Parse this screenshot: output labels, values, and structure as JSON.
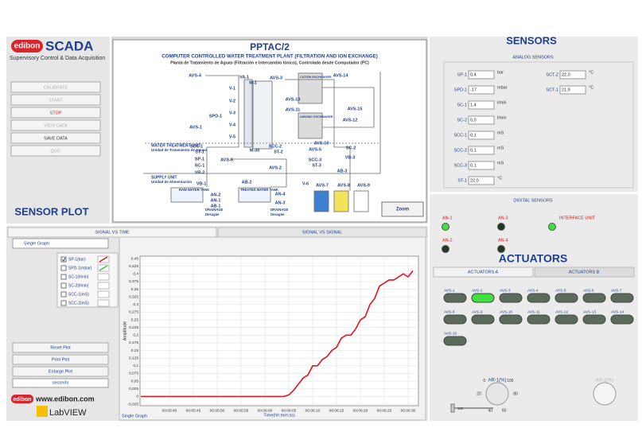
{
  "header": {
    "brand": "edibon",
    "product": "SCADA",
    "tagline": "Supervisory Control & Data Acquisition"
  },
  "controls": [
    "CALIBRATE",
    "START",
    "STOP",
    "VIEW DATA",
    "SAVE DATA",
    "QUIT"
  ],
  "sensor_plot_title": "SENSOR PLOT",
  "diagram": {
    "title": "PPTAC/2",
    "subtitle": "COMPUTER CONTROLLED WATER TREATMENT PLANT (FILTRATION AND ION EXCHANGE)",
    "subtitle_es": "Planta de Tratamiento de Aguas (Filtración e Intercambio Iónico), Controlada desde Computador (PC)",
    "labels": [
      "AVS-4",
      "VA-1",
      "AVS-3",
      "AVS-14",
      "V-1",
      "M-1",
      "V-2",
      "AVS-13",
      "AVS-11",
      "AVS-15",
      "V-3",
      "SPD-1",
      "AVS-12",
      "V-4",
      "AVS-1",
      "V-5",
      "AVS-10",
      "SCC-1",
      "SCC-2",
      "SC-2",
      "ST-1",
      "ST-2",
      "AVS-5",
      "M-30",
      "SP-1",
      "AVS-6",
      "VB-3",
      "SCC-3",
      "ST-3",
      "SC-1",
      "AVS-2",
      "AB-3",
      "VR-2",
      "AB-2",
      "VB-1",
      "V-6",
      "AVS-7",
      "AVS-8",
      "AVS-9",
      "AN-2",
      "AN-1",
      "AB-1",
      "AN-4",
      "AN-3"
    ],
    "captions": [
      "WATER TREATMENT UNIT",
      "Unidad de Tratamiento de Aguas",
      "SUPPLY UNIT",
      "Unidad de Alimentación",
      "RAW WATER TANK",
      "TREATED WATER TANK",
      "DRAINAGE",
      "Desagüe",
      "DRAINAGE",
      "Desagüe",
      "CATION EXCHANGER",
      "ANIONIC EXCHANGER"
    ],
    "zoom": "Zoom"
  },
  "sensors": {
    "title": "SENSORS",
    "analog_title": "ANALOG SENSORS",
    "analog": [
      {
        "name": "SP-1",
        "value": "0,4",
        "unit": "bar"
      },
      {
        "name": "SPD-1",
        "value": "-17",
        "unit": "mbar"
      },
      {
        "name": "SC-1",
        "value": "1,4",
        "unit": "l/min"
      },
      {
        "name": "SC-2",
        "value": "0,0",
        "unit": "l/min"
      },
      {
        "name": "SCC-1",
        "value": "0,1",
        "unit": "mS"
      },
      {
        "name": "SCC-2",
        "value": "0,1",
        "unit": "mS"
      },
      {
        "name": "SCC-3",
        "value": "0,1",
        "unit": "mS"
      },
      {
        "name": "ST-1",
        "value": "22,0",
        "unit": "°C"
      },
      {
        "name": "SCT-2",
        "value": "22,0",
        "unit": "°C"
      },
      {
        "name": "SCT-1",
        "value": "21,9",
        "unit": "°C"
      }
    ],
    "digital_title": "DIGITAL SENSORS",
    "digital": [
      {
        "name": "AN-1",
        "on": true
      },
      {
        "name": "AN-3",
        "on": false
      },
      {
        "name": "INTERFACE UNIT",
        "on": true
      },
      {
        "name": "AN-2",
        "on": false
      },
      {
        "name": "AN-4",
        "on": false
      }
    ]
  },
  "actuators": {
    "title": "ACTUATORS",
    "tabs": [
      "ACTUATORS A",
      "ACTUATORS B"
    ],
    "valves": [
      {
        "name": "AVS-1",
        "on": false
      },
      {
        "name": "AVS-2",
        "on": true
      },
      {
        "name": "AVS-3",
        "on": false
      },
      {
        "name": "AVS-4",
        "on": false
      },
      {
        "name": "AVS-5",
        "on": false
      },
      {
        "name": "AVS-6",
        "on": false
      },
      {
        "name": "AVS-7",
        "on": false
      },
      {
        "name": "AVS-8",
        "on": false
      },
      {
        "name": "AVS-9",
        "on": false
      },
      {
        "name": "AVS-10",
        "on": false
      },
      {
        "name": "AVS-11",
        "on": false
      },
      {
        "name": "AVS-12",
        "on": false
      },
      {
        "name": "AVS-13",
        "on": false
      },
      {
        "name": "AVS-14",
        "on": false
      },
      {
        "name": "AVS-15",
        "on": false
      }
    ],
    "knobs": [
      "AR-1(%)",
      "AR-2(%)"
    ],
    "knob_scale": [
      0,
      20,
      40,
      60,
      80,
      100
    ],
    "slider_label": 100
  },
  "plot": {
    "tabs": [
      "SIGNAL VS TIME",
      "SIGNAL VS SIGNAL"
    ],
    "mode": "Single Graph",
    "channels": [
      {
        "name": "SP-1(bar)",
        "checked": true,
        "color": "#e4141b"
      },
      {
        "name": "SPD-1(mbar)",
        "checked": false,
        "color": "#3cc43c"
      },
      {
        "name": "SC-1(l/min)",
        "checked": false,
        "color": "#ffffff"
      },
      {
        "name": "SC-2(l/min)",
        "checked": false,
        "color": "#ffffff"
      },
      {
        "name": "SCC-1(mS)",
        "checked": false,
        "color": "#ffffff"
      },
      {
        "name": "SCC-2(mS)",
        "checked": false,
        "color": "#ffffff"
      }
    ],
    "buttons": [
      "Reset Plot",
      "Print Plot",
      "Enlarge Plot"
    ],
    "units": "seconds",
    "chart_data": {
      "type": "line",
      "caption": "Single Graph",
      "xlabel": "Time(hh:mm:ss)",
      "ylabel": "Amplitude",
      "x": [
        334,
        364,
        365,
        366,
        367,
        368,
        369,
        370,
        371,
        372,
        373,
        374,
        375,
        376,
        377,
        378,
        379,
        380,
        381,
        382,
        383,
        384,
        385,
        386,
        387,
        388,
        389,
        390,
        391
      ],
      "series": [
        {
          "color": "#e4141b",
          "values": [
            0,
            0,
            0.005,
            0.02,
            0.04,
            0.06,
            0.07,
            0.1,
            0.1,
            0.12,
            0.13,
            0.15,
            0.16,
            0.19,
            0.2,
            0.2,
            0.22,
            0.25,
            0.26,
            0.3,
            0.32,
            0.36,
            0.37,
            0.38,
            0.38,
            0.39,
            0.4,
            0.39,
            0.41
          ]
        }
      ],
      "xlim": [
        334,
        392
      ],
      "ylim": [
        -0.025,
        0.45
      ],
      "xticks": [
        {
          "value": 340,
          "label": "00:05:40"
        },
        {
          "value": 345,
          "label": "00:05:45"
        },
        {
          "value": 350,
          "label": "00:05:50"
        },
        {
          "value": 355,
          "label": "00:05:55"
        },
        {
          "value": 360,
          "label": "00:06:00"
        },
        {
          "value": 365,
          "label": "00:06:05"
        },
        {
          "value": 370,
          "label": "00:06:10"
        },
        {
          "value": 375,
          "label": "00:06:15"
        },
        {
          "value": 380,
          "label": "00:06:20"
        },
        {
          "value": 385,
          "label": "00:06:25"
        },
        {
          "value": 390,
          "label": "00:06:30"
        }
      ],
      "yticks": [
        {
          "value": -0.025,
          "label": "-0,025"
        },
        0,
        {
          "value": 0.025,
          "label": "0,025"
        },
        {
          "value": 0.05,
          "label": "0,05"
        },
        {
          "value": 0.075,
          "label": "0,075"
        },
        {
          "value": 0.1,
          "label": "0,1"
        },
        {
          "value": 0.125,
          "label": "0,125"
        },
        {
          "value": 0.15,
          "label": "0,15"
        },
        {
          "value": 0.175,
          "label": "0,175"
        },
        {
          "value": 0.2,
          "label": "0,2"
        },
        {
          "value": 0.225,
          "label": "0,225"
        },
        {
          "value": 0.25,
          "label": "0,25"
        },
        {
          "value": 0.275,
          "label": "0,275"
        },
        {
          "value": 0.3,
          "label": "0,3"
        },
        {
          "value": 0.325,
          "label": "0,325"
        },
        {
          "value": 0.35,
          "label": "0,35"
        },
        {
          "value": 0.375,
          "label": "0,375"
        },
        {
          "value": 0.4,
          "label": "0,4"
        },
        {
          "value": 0.425,
          "label": "0,425"
        },
        {
          "value": 0.45,
          "label": "0,45"
        }
      ],
      "grid": true
    }
  },
  "footer": {
    "brand": "edibon",
    "website": "www.edibon.com",
    "labview": "LabVIEW"
  }
}
